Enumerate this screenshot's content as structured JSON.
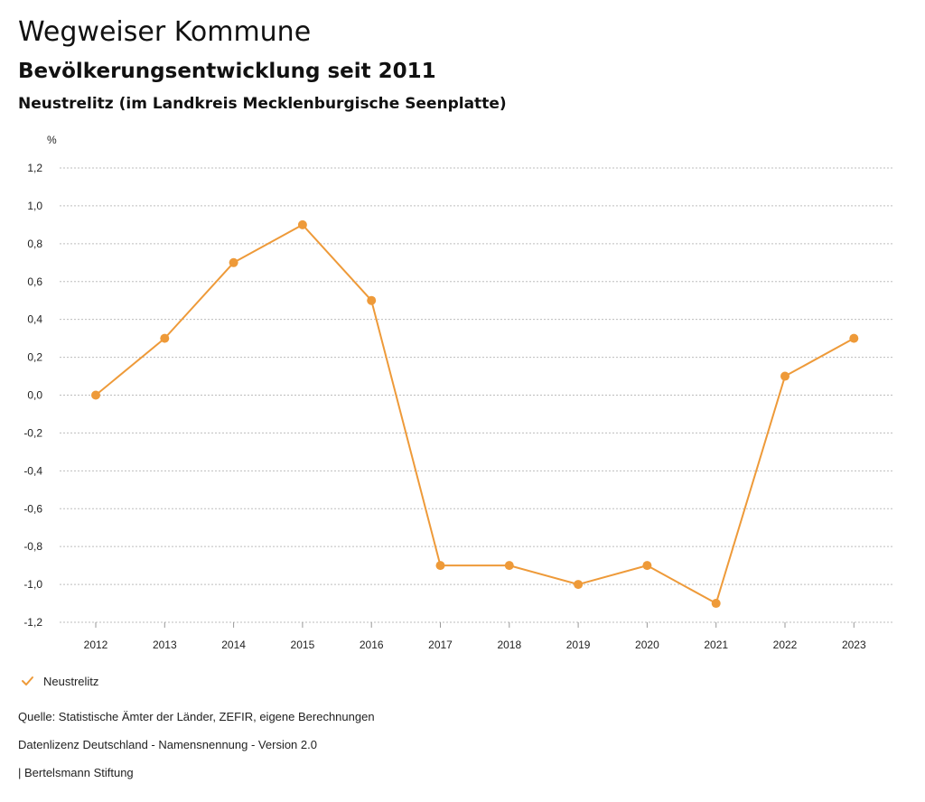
{
  "header": {
    "title": "Wegweiser Kommune",
    "subtitle": "Bevölkerungsentwicklung seit 2011",
    "region": "Neustrelitz (im Landkreis Mecklenburgische Seenplatte)"
  },
  "chart_data": {
    "type": "line",
    "ylabel": "%",
    "xlabel": "",
    "ylim": [
      -1.2,
      1.2
    ],
    "yticks": [
      1.2,
      1.0,
      0.8,
      0.6,
      0.4,
      0.2,
      0.0,
      -0.2,
      -0.4,
      -0.6,
      -0.8,
      -1.0,
      -1.2
    ],
    "yticks_labels": [
      "1,2",
      "1,0",
      "0,8",
      "0,6",
      "0,4",
      "0,2",
      "0,0",
      "-0,2",
      "-0,4",
      "-0,6",
      "-0,8",
      "-1,0",
      "-1,2"
    ],
    "categories": [
      "2012",
      "2013",
      "2014",
      "2015",
      "2016",
      "2017",
      "2018",
      "2019",
      "2020",
      "2021",
      "2022",
      "2023"
    ],
    "series": [
      {
        "name": "Neustrelitz",
        "color": "#ee9a39",
        "values": [
          0.0,
          0.3,
          0.7,
          0.9,
          0.5,
          -0.9,
          -0.9,
          -1.0,
          -0.9,
          -1.1,
          0.1,
          0.3
        ]
      }
    ],
    "grid": true,
    "legend_position": "bottom-left"
  },
  "legend": {
    "items": [
      {
        "label": "Neustrelitz"
      }
    ]
  },
  "footer": {
    "source": "Quelle: Statistische Ämter der Länder, ZEFIR, eigene Berechnungen",
    "license": "Datenlizenz Deutschland - Namensnennung - Version 2.0",
    "publisher": "| Bertelsmann Stiftung"
  }
}
